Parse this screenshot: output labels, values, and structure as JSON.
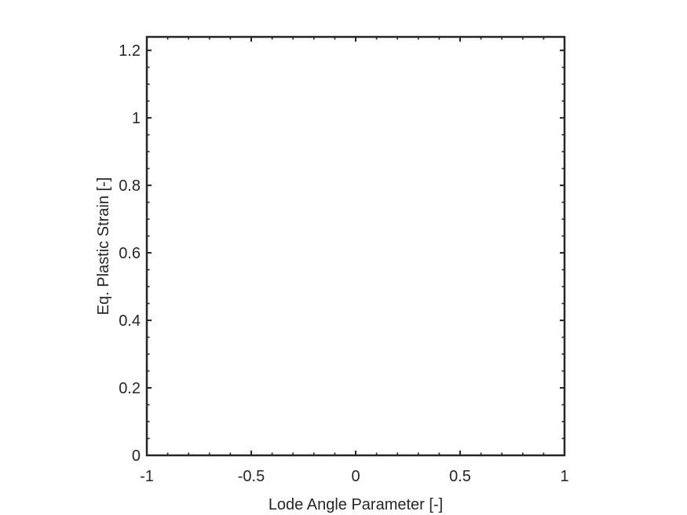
{
  "chart_data": {
    "type": "line",
    "title": "",
    "xlabel": "Lode Angle Parameter [-]",
    "ylabel": "Eq. Plastic Strain [-]",
    "xlim": [
      -1,
      1
    ],
    "ylim": [
      0,
      1.24
    ],
    "xticks": [
      -1,
      -0.5,
      0,
      0.5,
      1
    ],
    "xtick_labels": [
      "-1",
      "-0.5",
      "0",
      "0.5",
      "1"
    ],
    "yticks": [
      0,
      0.2,
      0.4,
      0.6,
      0.8,
      1,
      1.2
    ],
    "ytick_labels": [
      "0",
      "0.2",
      "0.4",
      "0.6",
      "0.8",
      "1",
      "1.2"
    ],
    "grid": false,
    "box": true,
    "minor_ticks": true,
    "series": [],
    "colors": {
      "axis": "#262626",
      "background": "#ffffff"
    }
  }
}
